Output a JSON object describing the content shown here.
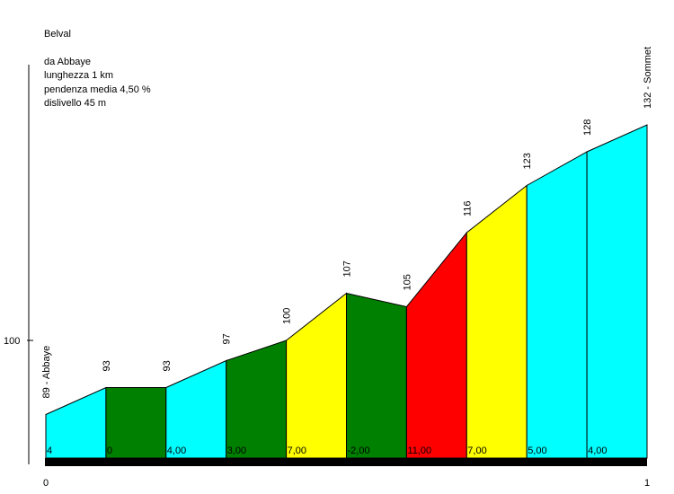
{
  "info": {
    "title": "Belval",
    "start": "da Abbaye",
    "length": "lunghezza 1 km",
    "avg_gradient": "pendenza media 4,50 %",
    "elevation_gain": "dislivello 45 m"
  },
  "chart_data": {
    "type": "area",
    "title": "Belval",
    "x_ticks": [
      "0",
      "1"
    ],
    "y_ticks": [
      {
        "value": 100,
        "label": "100"
      }
    ],
    "ylim": [
      72,
      134
    ],
    "points": [
      {
        "x": 0,
        "elev": 89,
        "label": "89 - Abbaye"
      },
      {
        "x": 0.1,
        "elev": 93,
        "label": "93"
      },
      {
        "x": 0.2,
        "elev": 93,
        "label": "93"
      },
      {
        "x": 0.3,
        "elev": 97,
        "label": "97"
      },
      {
        "x": 0.4,
        "elev": 100,
        "label": "100"
      },
      {
        "x": 0.5,
        "elev": 107,
        "label": "107"
      },
      {
        "x": 0.6,
        "elev": 105,
        "label": "105"
      },
      {
        "x": 0.7,
        "elev": 116,
        "label": "116"
      },
      {
        "x": 0.8,
        "elev": 123,
        "label": "123"
      },
      {
        "x": 0.9,
        "elev": 128,
        "label": "128"
      },
      {
        "x": 1.0,
        "elev": 132,
        "label": "132 - Sommet"
      }
    ],
    "segments": [
      {
        "gradient": "4",
        "color": "#00ffff"
      },
      {
        "gradient": "0",
        "color": "#008000"
      },
      {
        "gradient": "4,00",
        "color": "#00ffff"
      },
      {
        "gradient": "3,00",
        "color": "#008000"
      },
      {
        "gradient": "7,00",
        "color": "#ffff00"
      },
      {
        "gradient": "-2,00",
        "color": "#008000"
      },
      {
        "gradient": "11,00",
        "color": "#ff0000"
      },
      {
        "gradient": "7,00",
        "color": "#ffff00"
      },
      {
        "gradient": "5,00",
        "color": "#00ffff"
      },
      {
        "gradient": "4,00",
        "color": "#00ffff"
      }
    ]
  }
}
